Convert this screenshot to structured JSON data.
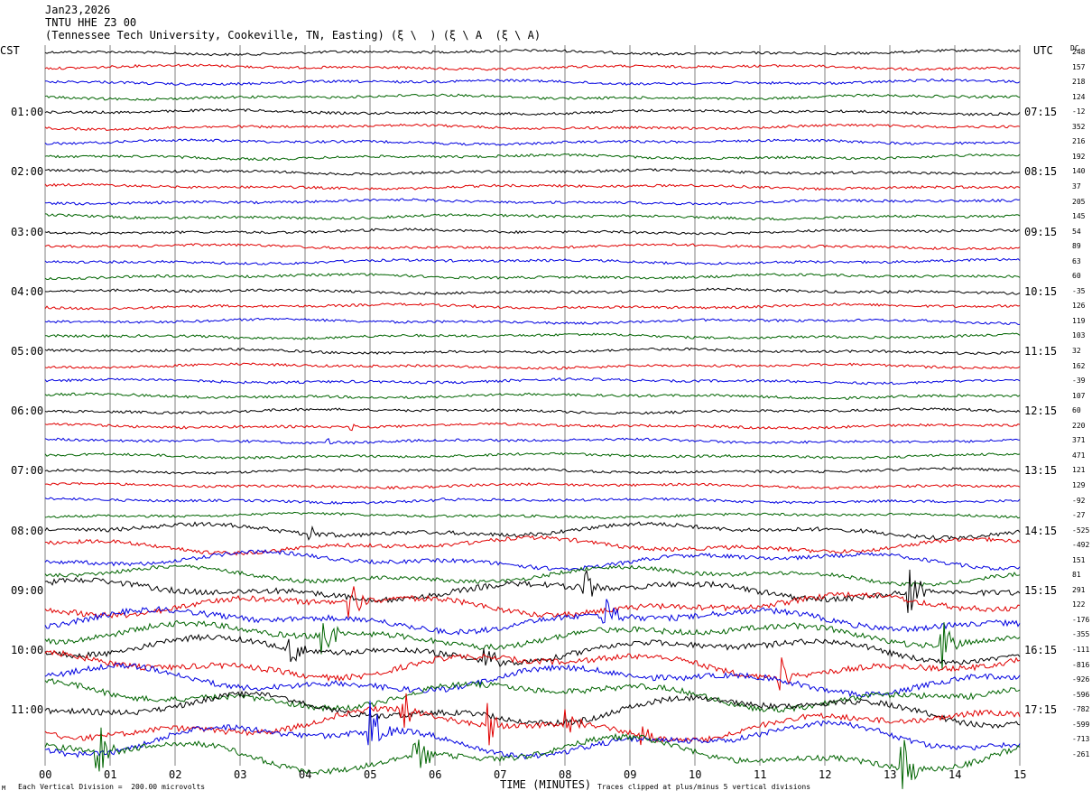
{
  "header": {
    "date": "Jan23,2026",
    "station": "TNTU HHE Z3 00",
    "location": "(Tennessee Tech University, Cookeville, TN, Easting) (ξ \\  ) (ξ \\ A  (ξ \\ A)"
  },
  "left_label": "CST",
  "right_label": "UTC",
  "dc_label": "DC",
  "footer": {
    "mark": "M",
    "left": "Each Vertical Division =  200.00 microvolts",
    "center": "TIME (MINUTES)",
    "right": "Traces clipped at plus/minus 5 vertical divisions"
  },
  "colors": {
    "trace_cycle": [
      "#000000",
      "#e00000",
      "#0000e0",
      "#006400"
    ],
    "grid": "#808080",
    "text": "#000000"
  },
  "chart_data": {
    "type": "line",
    "xlabel": "TIME (MINUTES)",
    "x_ticks": [
      "00",
      "01",
      "02",
      "03",
      "04",
      "05",
      "06",
      "07",
      "08",
      "09",
      "10",
      "11",
      "12",
      "13",
      "14",
      "15"
    ],
    "xlim": [
      0,
      15
    ],
    "trace_interval_minutes": 15,
    "left_time_labels": [
      {
        "row": 4,
        "label": "01:00"
      },
      {
        "row": 8,
        "label": "02:00"
      },
      {
        "row": 12,
        "label": "03:00"
      },
      {
        "row": 16,
        "label": "04:00"
      },
      {
        "row": 20,
        "label": "05:00"
      },
      {
        "row": 24,
        "label": "06:00"
      },
      {
        "row": 28,
        "label": "07:00"
      },
      {
        "row": 32,
        "label": "08:00"
      },
      {
        "row": 36,
        "label": "09:00"
      },
      {
        "row": 40,
        "label": "10:00"
      },
      {
        "row": 44,
        "label": "11:00"
      }
    ],
    "right_time_labels": [
      {
        "row": 4,
        "label": "07:15"
      },
      {
        "row": 8,
        "label": "08:15"
      },
      {
        "row": 12,
        "label": "09:15"
      },
      {
        "row": 16,
        "label": "10:15"
      },
      {
        "row": 20,
        "label": "11:15"
      },
      {
        "row": 24,
        "label": "12:15"
      },
      {
        "row": 28,
        "label": "13:15"
      },
      {
        "row": 32,
        "label": "14:15"
      },
      {
        "row": 36,
        "label": "15:15"
      },
      {
        "row": 40,
        "label": "16:15"
      },
      {
        "row": 44,
        "label": "17:15"
      }
    ],
    "dc_offsets": [
      "248",
      "157",
      "218",
      "124",
      "-12",
      "352",
      "216",
      "192",
      "140",
      "37",
      "205",
      "145",
      "54",
      "89",
      "63",
      "60",
      "-35",
      "126",
      "119",
      "103",
      "32",
      "162",
      "-39",
      "107",
      "60",
      "220",
      "371",
      "471",
      "121",
      "129",
      "-92",
      "-27",
      "-525",
      "-492",
      "151",
      "81",
      "291",
      "122",
      "-176",
      "-355",
      "-111",
      "-816",
      "-926",
      "-596",
      "-782",
      "-599",
      "-713",
      "-261"
    ],
    "events": [
      {
        "row": 26,
        "minute": 4.35,
        "amplitude": 0.3
      },
      {
        "row": 25,
        "minute": 4.7,
        "amplitude": 0.4
      },
      {
        "row": 30,
        "minute": 6.1,
        "amplitude": 0.3
      },
      {
        "row": 32,
        "minute": 4.1,
        "amplitude": 0.6
      },
      {
        "row": 37,
        "minute": 4.7,
        "amplitude": 2.0
      },
      {
        "row": 36,
        "minute": 8.3,
        "amplitude": 1.6
      },
      {
        "row": 38,
        "minute": 8.6,
        "amplitude": 1.8
      },
      {
        "row": 36,
        "minute": 13.3,
        "amplitude": 2.5
      },
      {
        "row": 39,
        "minute": 4.3,
        "amplitude": 2.5
      },
      {
        "row": 40,
        "minute": 3.8,
        "amplitude": 1.2
      },
      {
        "row": 40,
        "minute": 6.8,
        "amplitude": 1.5
      },
      {
        "row": 41,
        "minute": 11.3,
        "amplitude": 1.7
      },
      {
        "row": 39,
        "minute": 13.8,
        "amplitude": 2.2
      },
      {
        "row": 45,
        "minute": 6.8,
        "amplitude": 1.8
      },
      {
        "row": 45,
        "minute": 8.0,
        "amplitude": 1.5
      },
      {
        "row": 45,
        "minute": 9.2,
        "amplitude": 1.5
      },
      {
        "row": 45,
        "minute": 5.5,
        "amplitude": 2.0
      },
      {
        "row": 46,
        "minute": 5.0,
        "amplitude": 3.0
      },
      {
        "row": 47,
        "minute": 0.8,
        "amplitude": 3.0
      },
      {
        "row": 47,
        "minute": 5.7,
        "amplitude": 2.5
      },
      {
        "row": 47,
        "minute": 13.2,
        "amplitude": 3.0
      }
    ]
  }
}
